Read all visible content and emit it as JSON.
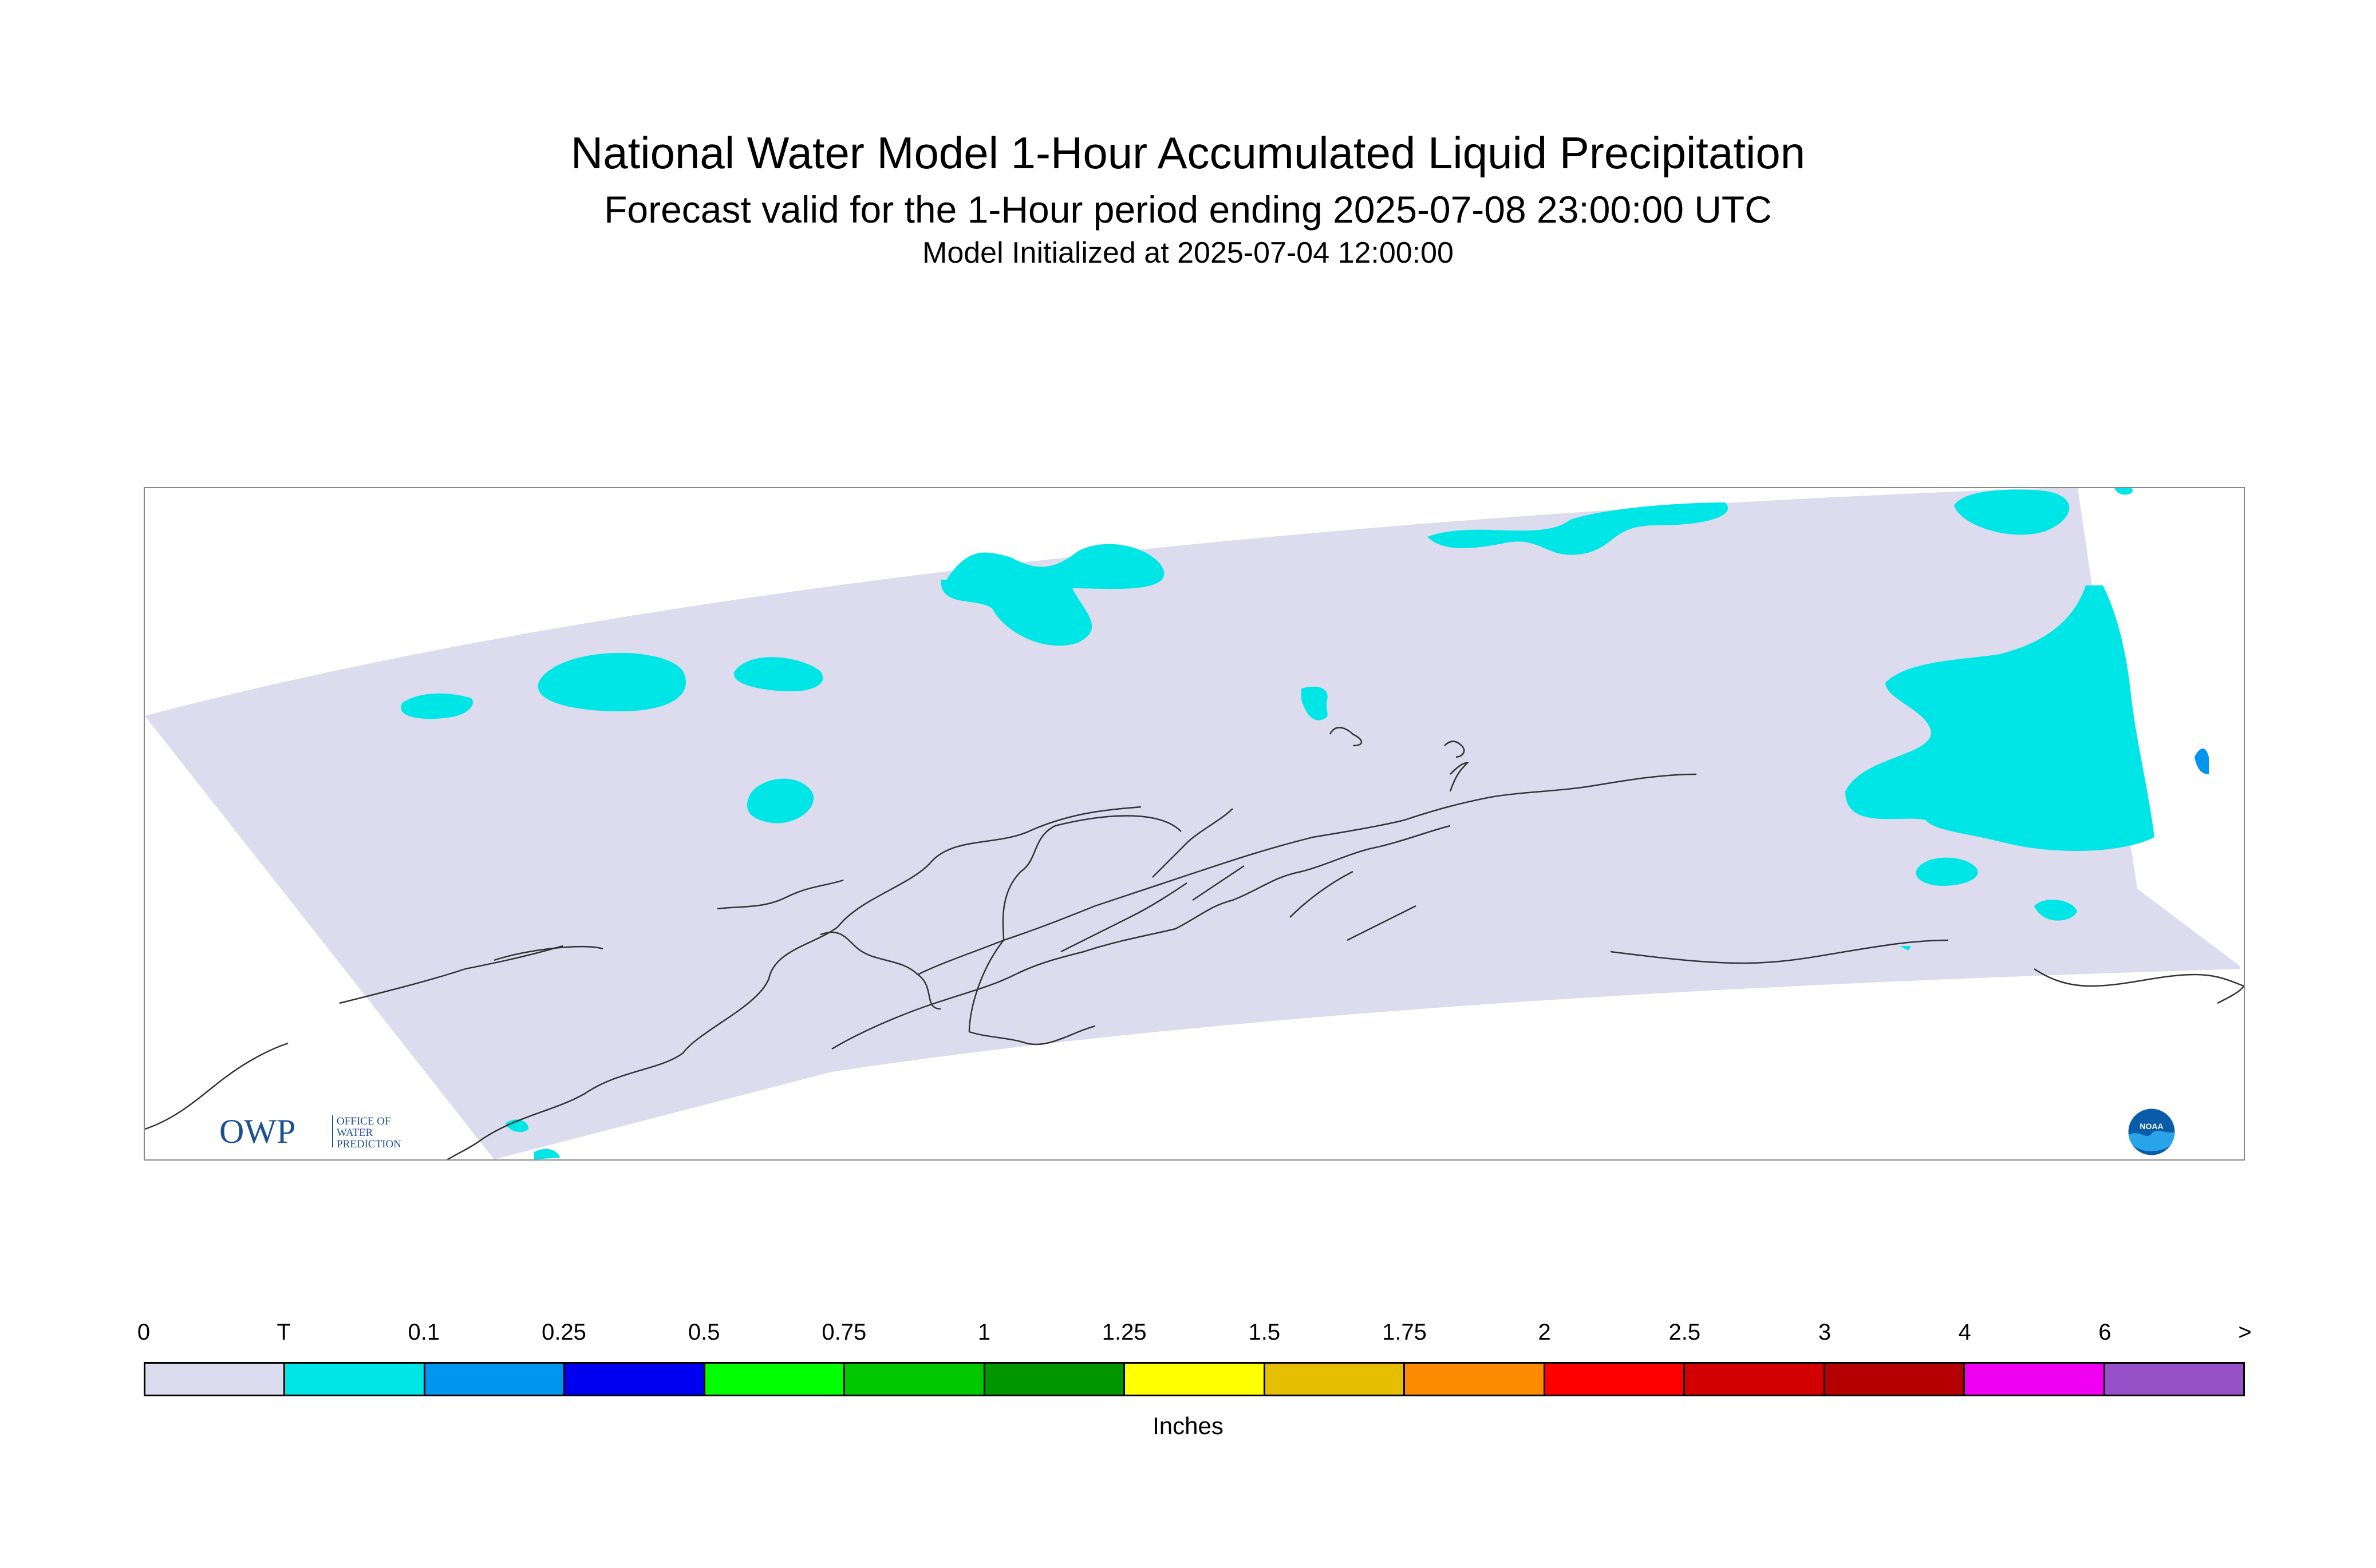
{
  "title": "National Water Model 1-Hour Accumulated Liquid Precipitation",
  "subtitle": "Forecast valid for the 1-Hour period ending 2025-07-08 23:00:00 UTC",
  "init_line": "Model Initialized at 2025-07-04 12:00:00",
  "logos": {
    "owp_letters": "OWP",
    "owp_text": [
      "OFFICE OF",
      "WATER",
      "PREDICTION"
    ],
    "noaa_text": "NOAA"
  },
  "colors": {
    "domain_fill": "#dcdcee",
    "trace": "#00e6e6",
    "light_blue": "#0096f0",
    "coast": "#333333"
  },
  "legend": {
    "unit": "Inches",
    "tick_labels": [
      "0",
      "T",
      "0.1",
      "0.25",
      "0.5",
      "0.75",
      "1",
      "1.25",
      "1.5",
      "1.75",
      "2",
      "2.5",
      "3",
      "4",
      "6",
      ">"
    ],
    "bins": [
      {
        "color": "#dcdcee"
      },
      {
        "color": "#00e6e6"
      },
      {
        "color": "#0096f0"
      },
      {
        "color": "#0000f0"
      },
      {
        "color": "#00ff00"
      },
      {
        "color": "#00c800"
      },
      {
        "color": "#009600"
      },
      {
        "color": "#ffff00"
      },
      {
        "color": "#e6be00"
      },
      {
        "color": "#ff8c00"
      },
      {
        "color": "#ff0000"
      },
      {
        "color": "#d20000"
      },
      {
        "color": "#b40000"
      },
      {
        "color": "#f000f0"
      },
      {
        "color": "#9650c8"
      }
    ]
  }
}
